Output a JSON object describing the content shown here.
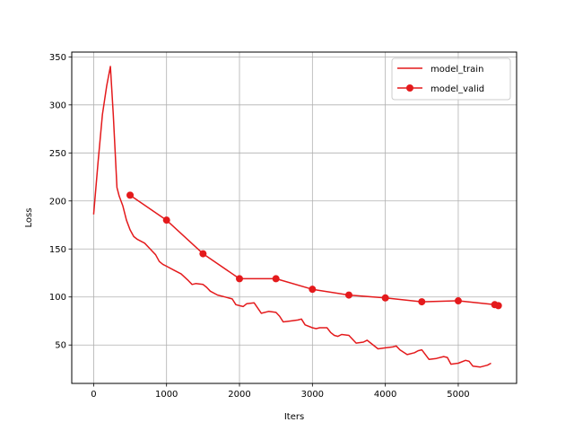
{
  "chart_data": {
    "type": "line",
    "xlabel": "Iters",
    "ylabel": "Loss",
    "xlim": [
      -300,
      5800
    ],
    "ylim": [
      10,
      355
    ],
    "xticks": [
      0,
      1000,
      2000,
      3000,
      4000,
      5000
    ],
    "yticks": [
      50,
      100,
      150,
      200,
      250,
      300,
      350
    ],
    "grid": true,
    "legend_position": "top-right",
    "series": [
      {
        "name": "model_train",
        "color": "#e41a1c",
        "marker": "none",
        "x": [
          0,
          60,
          120,
          180,
          230,
          270,
          320,
          350,
          400,
          450,
          500,
          550,
          600,
          650,
          700,
          750,
          800,
          850,
          900,
          950,
          1000,
          1100,
          1200,
          1300,
          1350,
          1400,
          1500,
          1550,
          1600,
          1700,
          1800,
          1900,
          1950,
          2000,
          2050,
          2100,
          2200,
          2300,
          2400,
          2500,
          2550,
          2600,
          2700,
          2800,
          2850,
          2900,
          3000,
          3050,
          3100,
          3200,
          3250,
          3300,
          3350,
          3400,
          3500,
          3600,
          3700,
          3750,
          3800,
          3900,
          4000,
          4100,
          4150,
          4200,
          4300,
          4400,
          4450,
          4500,
          4600,
          4700,
          4800,
          4850,
          4900,
          5000,
          5100,
          5150,
          5200,
          5300,
          5400,
          5450
        ],
        "y": [
          186,
          240,
          290,
          320,
          340,
          290,
          214,
          205,
          195,
          180,
          170,
          163,
          160,
          158,
          156,
          152,
          148,
          144,
          137,
          134,
          132,
          128,
          124,
          117,
          113,
          114,
          113,
          110,
          106,
          102,
          100,
          98,
          92,
          91,
          90,
          93,
          94,
          83,
          85,
          84,
          80,
          74,
          75,
          76,
          77,
          71,
          68,
          67,
          68,
          68,
          63,
          60,
          59,
          61,
          60,
          52,
          53,
          55,
          52,
          46,
          47,
          48,
          49,
          45,
          40,
          42,
          44,
          45,
          35,
          36,
          38,
          37,
          30,
          31,
          34,
          33,
          28,
          27,
          29,
          31
        ]
      },
      {
        "name": "model_valid",
        "color": "#e41a1c",
        "marker": "circle",
        "x": [
          500,
          1000,
          1500,
          2000,
          2500,
          3000,
          3500,
          4000,
          4500,
          5000,
          5500,
          5550
        ],
        "y": [
          206,
          180,
          145,
          119,
          119,
          108,
          102,
          99,
          95,
          96,
          92,
          91
        ]
      }
    ]
  }
}
